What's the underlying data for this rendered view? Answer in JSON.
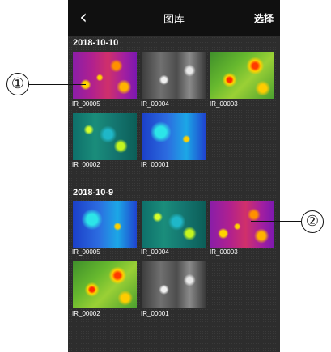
{
  "header": {
    "back_icon": "chevron-left-icon",
    "title": "图库",
    "select_label": "选择"
  },
  "sections": [
    {
      "date": "2018-10-10",
      "items": [
        {
          "name": "IR_00005",
          "palette": "ironbow"
        },
        {
          "name": "IR_00004",
          "palette": "gray"
        },
        {
          "name": "IR_00003",
          "palette": "rainbow"
        },
        {
          "name": "IR_00002",
          "palette": "cyan"
        },
        {
          "name": "IR_00001",
          "palette": "blue"
        }
      ]
    },
    {
      "date": "2018-10-9",
      "items": [
        {
          "name": "IR_00005",
          "palette": "blue"
        },
        {
          "name": "IR_00004",
          "palette": "cyan"
        },
        {
          "name": "IR_00003",
          "palette": "ironbow"
        },
        {
          "name": "IR_00002",
          "palette": "rainbow"
        },
        {
          "name": "IR_00001",
          "palette": "gray"
        }
      ]
    }
  ],
  "callouts": [
    {
      "label": "①"
    },
    {
      "label": "②"
    }
  ],
  "colors": {
    "topbar": "#101010",
    "background": "#2d2d2d",
    "text": "#ffffff"
  }
}
